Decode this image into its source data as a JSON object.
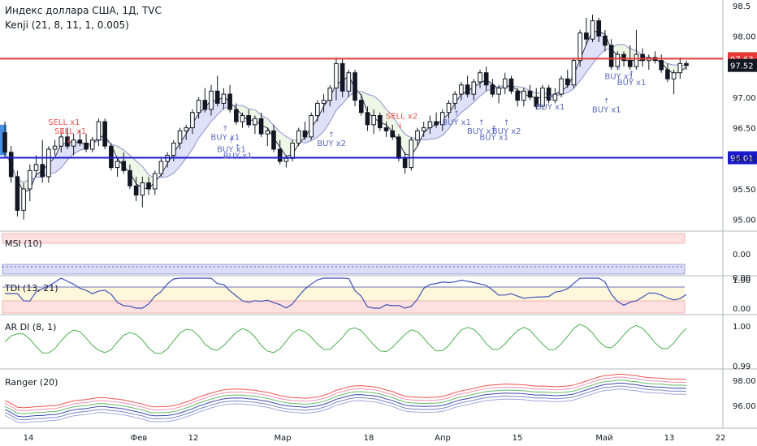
{
  "header": {
    "title": "Индекс доллара США, 1Д, TVC",
    "indicator": "Kenji (21, 8, 11, 1, 0.005)"
  },
  "colors": {
    "up_candle": "#ffffff",
    "down_candle": "#131722",
    "red_line": "#e53935",
    "blue_line": "#1a1acc",
    "signal_text": "#5c6bc0",
    "sell_text": "#ef5350",
    "cloud_fill": "#d6d9f5",
    "cloud_fill_green": "#e8f5e2"
  },
  "chart_data": {
    "type": "candlestick",
    "price_axis": {
      "ticks": [
        "98.5",
        "98.00",
        "97.50",
        "97.00",
        "96.50",
        "96.00",
        "95.50",
        "95.00"
      ],
      "ylim": [
        94.85,
        98.55
      ]
    },
    "levels": [
      {
        "value": 97.63,
        "label": "97.63",
        "color": "red"
      },
      {
        "value": 96.01,
        "label": "96.01",
        "color": "blue"
      }
    ],
    "last_price": {
      "value": 97.52,
      "label": "97.52"
    },
    "x_labels": [
      "14",
      "Фев",
      "12",
      "Мар",
      "18",
      "Апр",
      "15",
      "Май",
      "13",
      "22"
    ],
    "candles": [
      [
        96.42,
        96.6,
        96.0,
        96.1
      ],
      [
        96.1,
        96.2,
        95.6,
        95.7
      ],
      [
        95.7,
        95.8,
        95.05,
        95.15
      ],
      [
        95.15,
        95.6,
        95.0,
        95.5
      ],
      [
        95.5,
        95.9,
        95.3,
        95.8
      ],
      [
        95.8,
        96.05,
        95.7,
        95.9
      ],
      [
        95.9,
        96.3,
        95.6,
        95.7
      ],
      [
        95.7,
        96.2,
        95.6,
        96.15
      ],
      [
        96.15,
        96.3,
        96.05,
        96.2
      ],
      [
        96.2,
        96.4,
        96.1,
        96.35
      ],
      [
        96.35,
        96.5,
        96.15,
        96.2
      ],
      [
        96.2,
        96.4,
        96.05,
        96.3
      ],
      [
        96.3,
        96.45,
        96.2,
        96.25
      ],
      [
        96.25,
        96.4,
        96.1,
        96.15
      ],
      [
        96.15,
        96.35,
        96.1,
        96.3
      ],
      [
        96.3,
        96.65,
        96.2,
        96.6
      ],
      [
        96.6,
        96.65,
        96.15,
        96.2
      ],
      [
        96.2,
        96.25,
        95.8,
        95.85
      ],
      [
        95.85,
        96.0,
        95.7,
        95.95
      ],
      [
        95.95,
        96.1,
        95.75,
        95.8
      ],
      [
        95.8,
        95.9,
        95.5,
        95.55
      ],
      [
        95.55,
        95.7,
        95.3,
        95.4
      ],
      [
        95.4,
        95.7,
        95.2,
        95.6
      ],
      [
        95.6,
        95.7,
        95.4,
        95.5
      ],
      [
        95.5,
        95.8,
        95.4,
        95.75
      ],
      [
        95.75,
        96.0,
        95.7,
        95.95
      ],
      [
        95.95,
        96.1,
        95.85,
        96.05
      ],
      [
        96.05,
        96.3,
        95.95,
        96.25
      ],
      [
        96.25,
        96.5,
        96.15,
        96.45
      ],
      [
        96.45,
        96.55,
        96.3,
        96.5
      ],
      [
        96.5,
        96.8,
        96.4,
        96.75
      ],
      [
        96.75,
        97.0,
        96.65,
        96.95
      ],
      [
        96.95,
        97.15,
        96.75,
        96.8
      ],
      [
        96.8,
        97.2,
        96.7,
        97.1
      ],
      [
        97.1,
        97.35,
        96.85,
        96.9
      ],
      [
        96.9,
        97.15,
        96.8,
        97.05
      ],
      [
        97.05,
        97.2,
        96.75,
        96.8
      ],
      [
        96.8,
        96.9,
        96.55,
        96.6
      ],
      [
        96.6,
        96.75,
        96.5,
        96.7
      ],
      [
        96.7,
        96.8,
        96.5,
        96.55
      ],
      [
        96.55,
        96.7,
        96.4,
        96.65
      ],
      [
        96.65,
        96.75,
        96.35,
        96.4
      ],
      [
        96.4,
        96.5,
        96.2,
        96.45
      ],
      [
        96.45,
        96.55,
        96.1,
        96.15
      ],
      [
        96.15,
        96.3,
        95.9,
        95.95
      ],
      [
        95.95,
        96.05,
        95.85,
        96.0
      ],
      [
        96.0,
        96.3,
        95.95,
        96.25
      ],
      [
        96.25,
        96.5,
        96.2,
        96.45
      ],
      [
        96.45,
        96.6,
        96.3,
        96.35
      ],
      [
        96.35,
        96.75,
        96.3,
        96.7
      ],
      [
        96.7,
        96.95,
        96.6,
        96.9
      ],
      [
        96.9,
        97.05,
        96.75,
        96.95
      ],
      [
        96.95,
        97.2,
        96.85,
        97.15
      ],
      [
        97.15,
        97.65,
        96.95,
        97.55
      ],
      [
        97.55,
        97.62,
        97.0,
        97.1
      ],
      [
        97.1,
        97.45,
        97.0,
        97.4
      ],
      [
        97.4,
        97.45,
        96.85,
        96.95
      ],
      [
        96.95,
        97.05,
        96.7,
        96.75
      ],
      [
        96.75,
        96.85,
        96.45,
        96.55
      ],
      [
        96.55,
        96.8,
        96.4,
        96.7
      ],
      [
        96.7,
        96.75,
        96.45,
        96.5
      ],
      [
        96.5,
        96.6,
        96.35,
        96.45
      ],
      [
        96.45,
        96.55,
        96.3,
        96.35
      ],
      [
        96.35,
        96.4,
        95.95,
        96.0
      ],
      [
        96.0,
        96.1,
        95.75,
        95.85
      ],
      [
        95.85,
        96.35,
        95.8,
        96.3
      ],
      [
        96.3,
        96.5,
        96.2,
        96.45
      ],
      [
        96.45,
        96.6,
        96.35,
        96.5
      ],
      [
        96.5,
        96.7,
        96.4,
        96.6
      ],
      [
        96.6,
        96.75,
        96.5,
        96.55
      ],
      [
        96.55,
        96.8,
        96.45,
        96.75
      ],
      [
        96.75,
        96.95,
        96.65,
        96.9
      ],
      [
        96.9,
        97.1,
        96.8,
        97.05
      ],
      [
        97.05,
        97.25,
        96.95,
        97.2
      ],
      [
        97.2,
        97.35,
        97.0,
        97.05
      ],
      [
        97.05,
        97.3,
        96.95,
        97.25
      ],
      [
        97.25,
        97.45,
        97.15,
        97.4
      ],
      [
        97.4,
        97.5,
        97.1,
        97.2
      ],
      [
        97.2,
        97.3,
        97.0,
        97.05
      ],
      [
        97.05,
        97.2,
        96.9,
        97.15
      ],
      [
        97.15,
        97.4,
        97.05,
        97.3
      ],
      [
        97.3,
        97.35,
        97.05,
        97.1
      ],
      [
        97.1,
        97.15,
        96.85,
        96.95
      ],
      [
        96.95,
        97.15,
        96.85,
        97.1
      ],
      [
        97.1,
        97.2,
        96.95,
        97.0
      ],
      [
        97.0,
        97.15,
        96.8,
        96.85
      ],
      [
        96.85,
        97.2,
        96.8,
        97.15
      ],
      [
        97.15,
        97.2,
        96.9,
        96.95
      ],
      [
        96.95,
        97.15,
        96.9,
        97.05
      ],
      [
        97.05,
        97.35,
        97.0,
        97.3
      ],
      [
        97.3,
        97.45,
        97.15,
        97.2
      ],
      [
        97.2,
        97.65,
        97.15,
        97.6
      ],
      [
        97.6,
        98.1,
        97.5,
        98.05
      ],
      [
        98.05,
        98.3,
        97.85,
        97.95
      ],
      [
        97.95,
        98.35,
        97.9,
        98.25
      ],
      [
        98.25,
        98.3,
        97.9,
        98.0
      ],
      [
        98.0,
        98.1,
        97.75,
        97.85
      ],
      [
        97.85,
        97.95,
        97.45,
        97.5
      ],
      [
        97.5,
        97.75,
        97.45,
        97.7
      ],
      [
        97.7,
        97.75,
        97.5,
        97.6
      ],
      [
        97.6,
        97.85,
        97.45,
        97.5
      ],
      [
        97.5,
        98.1,
        97.45,
        97.7
      ],
      [
        97.7,
        97.8,
        97.5,
        97.6
      ],
      [
        97.6,
        97.7,
        97.45,
        97.65
      ],
      [
        97.65,
        97.75,
        97.55,
        97.6
      ],
      [
        97.6,
        97.7,
        97.4,
        97.45
      ],
      [
        97.45,
        97.55,
        97.25,
        97.3
      ],
      [
        97.3,
        97.45,
        97.05,
        97.4
      ],
      [
        97.4,
        97.65,
        97.3,
        97.55
      ],
      [
        97.55,
        97.6,
        97.45,
        97.52
      ]
    ],
    "signals": [
      {
        "label": "SELL x1",
        "type": "sell"
      },
      {
        "label": "SELL x1",
        "type": "sell"
      },
      {
        "label": "BUY x1",
        "type": "buy"
      },
      {
        "label": "BUY x1",
        "type": "buy"
      },
      {
        "label": "BUY x1",
        "type": "buy"
      },
      {
        "label": "BUY x2",
        "type": "buy"
      },
      {
        "label": "SELL x2",
        "type": "sell"
      },
      {
        "label": "BUY x1",
        "type": "buy"
      },
      {
        "label": "BUY x1",
        "type": "buy"
      },
      {
        "label": "BUY x1",
        "type": "buy"
      },
      {
        "label": "BUY x2",
        "type": "buy"
      },
      {
        "label": "BUY x1",
        "type": "buy"
      },
      {
        "label": "BUY x1",
        "type": "buy"
      },
      {
        "label": "BUY x1",
        "type": "buy"
      },
      {
        "label": "BUY x1",
        "type": "buy"
      }
    ],
    "panels": [
      {
        "name": "MSI (10)",
        "ticks": [
          "0.00",
          "0.00"
        ]
      },
      {
        "name": "TDI (13, 21)",
        "ticks": [
          "1.00",
          "0.00"
        ]
      },
      {
        "name": "AR DI (8, 1)",
        "ticks": [
          "1.00",
          "0.99"
        ]
      },
      {
        "name": "Ranger (20)",
        "ticks": [
          "98.00",
          "96.00"
        ]
      }
    ]
  }
}
